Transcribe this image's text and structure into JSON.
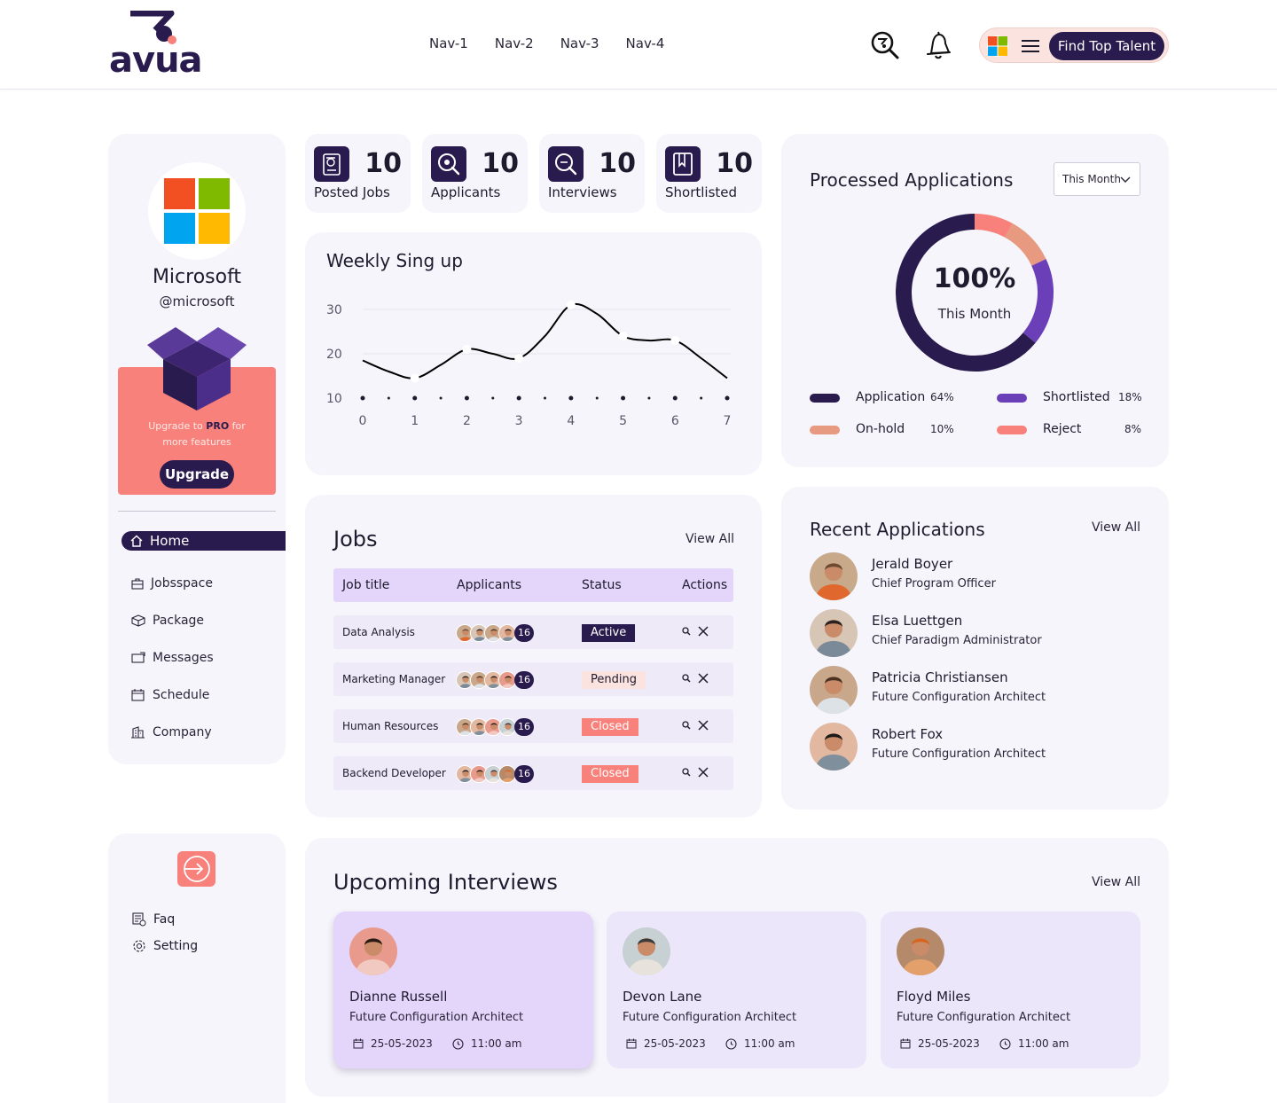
{
  "header": {
    "logo_text": "avua",
    "nav": [
      "Nav-1",
      "Nav-2",
      "Nav-3",
      "Nav-4"
    ],
    "cta_label": "Find Top Talent"
  },
  "profile": {
    "company": "Microsoft",
    "handle": "@microsoft",
    "promo_prefix": "Upgrade to",
    "promo_bold": "PRO",
    "promo_suffix": "for",
    "promo_line2": "more features",
    "upgrade_label": "Upgrade"
  },
  "sidebar": {
    "items": [
      {
        "label": "Home",
        "icon": "home-icon",
        "active": true
      },
      {
        "label": "Jobsspace",
        "icon": "briefcase-icon"
      },
      {
        "label": "Package",
        "icon": "package-icon"
      },
      {
        "label": "Messages",
        "icon": "message-icon"
      },
      {
        "label": "Schedule",
        "icon": "calendar-icon"
      },
      {
        "label": "Company",
        "icon": "building-icon"
      }
    ],
    "bottom": [
      {
        "label": "Faq",
        "icon": "faq-icon"
      },
      {
        "label": "Setting",
        "icon": "gear-icon"
      }
    ]
  },
  "stats": [
    {
      "value": "10",
      "label": "Posted Jobs",
      "icon": "posted-jobs-icon"
    },
    {
      "value": "10",
      "label": "Applicants",
      "icon": "applicants-icon"
    },
    {
      "value": "10",
      "label": "Interviews",
      "icon": "interviews-icon"
    },
    {
      "value": "10",
      "label": "Shortlisted",
      "icon": "bookmark-icon"
    }
  ],
  "weekly": {
    "title": "Weekly Sing up",
    "chart_data": {
      "type": "line",
      "x": [
        0,
        0.5,
        1,
        1.5,
        2,
        2.5,
        3,
        3.5,
        4,
        4.5,
        5,
        5.5,
        6,
        6.5,
        7
      ],
      "values": [
        18.5,
        16,
        14.5,
        17.5,
        21,
        20,
        19,
        24,
        31,
        29,
        24,
        23,
        23,
        19,
        14.5
      ],
      "xticks": [
        "0",
        "1",
        "2",
        "3",
        "4",
        "5",
        "6",
        "7"
      ],
      "yticks": [
        "10",
        "20",
        "30"
      ],
      "ylim": [
        10,
        30
      ],
      "xlim": [
        0,
        7
      ],
      "grid": true,
      "color": "#000000"
    }
  },
  "processed": {
    "title": "Processed Applications",
    "filter": "This Month",
    "center_value": "100%",
    "center_label": "This Month",
    "chart_data": {
      "type": "pie",
      "categories": [
        "Application",
        "Shortlisted",
        "On-hold",
        "Reject"
      ],
      "values": [
        64,
        18,
        10,
        8
      ],
      "labels": [
        "64%",
        "18%",
        "10%",
        "8%"
      ],
      "colors": [
        "#2a1b4e",
        "#6b3fb8",
        "#e79a7f",
        "#f8817b"
      ]
    }
  },
  "jobs": {
    "title": "Jobs",
    "view_all": "View All",
    "columns": [
      "Job title",
      "Applicants",
      "Status",
      "Actions"
    ],
    "rows": [
      {
        "title": "Data Analysis",
        "count": "16",
        "status": "Active",
        "kind": "active"
      },
      {
        "title": "Marketing Manager",
        "count": "16",
        "status": "Pending",
        "kind": "pending"
      },
      {
        "title": "Human Resources",
        "count": "16",
        "status": "Closed",
        "kind": "closed"
      },
      {
        "title": "Backend Developer",
        "count": "16",
        "status": "Closed",
        "kind": "closed"
      }
    ]
  },
  "recent": {
    "title": "Recent Applications",
    "view_all": "View All",
    "items": [
      {
        "name": "Jerald Boyer",
        "role": "Chief Program Officer"
      },
      {
        "name": "Elsa Luettgen",
        "role": "Chief Paradigm Administrator"
      },
      {
        "name": "Patricia Christiansen",
        "role": "Future Configuration Architect"
      },
      {
        "name": "Robert Fox",
        "role": "Future Configuration Architect"
      }
    ]
  },
  "interviews": {
    "title": "Upcoming Interviews",
    "view_all": "View All",
    "items": [
      {
        "name": "Dianne Russell",
        "role": "Future Configuration Architect",
        "date": "25-05-2023",
        "time": "11:00 am"
      },
      {
        "name": "Devon Lane",
        "role": "Future Configuration Architect",
        "date": "25-05-2023",
        "time": "11:00 am"
      },
      {
        "name": "Floyd Miles",
        "role": "Future Configuration Architect",
        "date": "25-05-2023",
        "time": "11:00 am"
      }
    ]
  }
}
